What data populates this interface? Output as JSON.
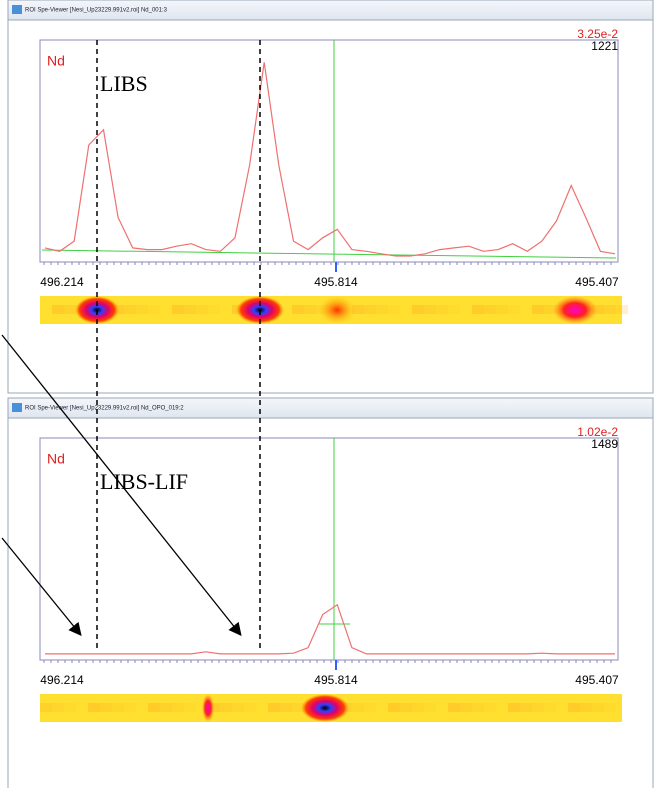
{
  "windows": [
    {
      "title": "ROI Spe-Viewer [Nesi_Up23229.991v2.roi] Nd_001:3",
      "scale": "3.25e-2",
      "max": 1221,
      "element": "Nd",
      "label": "LIBS",
      "x_labels": [
        "496.214",
        "495.814",
        "495.407"
      ],
      "spectrum": [
        60,
        40,
        100,
        670,
        760,
        240,
        60,
        50,
        50,
        70,
        85,
        50,
        40,
        120,
        550,
        1160,
        550,
        100,
        50,
        120,
        170,
        50,
        40,
        25,
        12,
        12,
        25,
        50,
        60,
        70,
        40,
        50,
        85,
        40,
        100,
        220,
        430,
        240,
        40,
        25
      ]
    },
    {
      "title": "ROI Spe-Viewer [Nesi_Up23229.991v2.roi] Nd_OPO_019:2",
      "scale": "1.02e-2",
      "max": 1489,
      "element": "Nd",
      "label": "LIBS-LIF",
      "x_labels": [
        "496.214",
        "495.814",
        "495.407"
      ],
      "spectrum": [
        15,
        15,
        15,
        15,
        15,
        15,
        15,
        15,
        15,
        15,
        15,
        30,
        15,
        15,
        15,
        15,
        15,
        20,
        60,
        300,
        370,
        60,
        15,
        15,
        15,
        15,
        15,
        15,
        15,
        15,
        15,
        15,
        15,
        15,
        20,
        15,
        15,
        15,
        15,
        15
      ]
    }
  ]
}
